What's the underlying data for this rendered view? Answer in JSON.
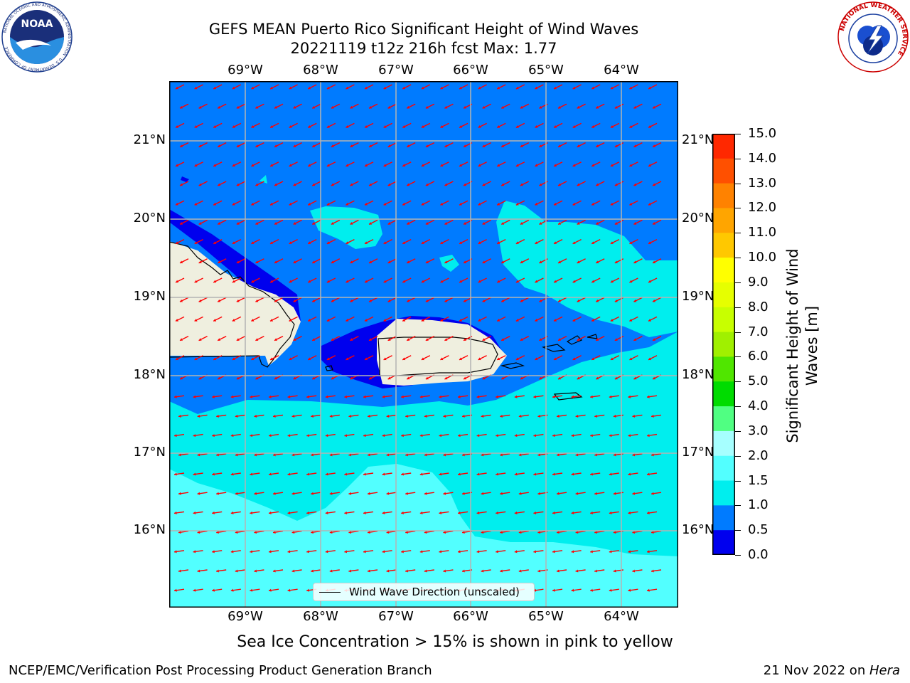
{
  "title": {
    "line1": "GEFS MEAN Puerto Rico Significant Height of Wind Waves",
    "line2": "20221119 t12z 216h fcst   Max: 1.77"
  },
  "logos": {
    "left_text": "NOAA",
    "left_ring": "NATIONAL OCEANIC AND ATMOSPHERIC ADMINISTRATION · U.S. DEPARTMENT OF COMMERCE",
    "right_ring": "NATIONAL WEATHER SERVICE"
  },
  "map": {
    "lon_labels": [
      "69°W",
      "68°W",
      "67°W",
      "66°W",
      "65°W",
      "64°W"
    ],
    "lat_labels": [
      "21°N",
      "20°N",
      "19°N",
      "18°N",
      "17°N",
      "16°N"
    ],
    "legend_label": "Wind Wave Direction (unscaled)",
    "colors": {
      "land": "#efefdf",
      "band_0_0_5": "#0000ee",
      "band_0_5_1": "#007bff",
      "band_1_1_5": "#00eeee",
      "band_1_5_2": "#52ffff",
      "band_2_3": "#a6ffff",
      "arrow": "#ff0000",
      "grid": "#b4b4b4"
    }
  },
  "colorbar": {
    "label": "Significant Height of Wind Waves [m]",
    "ticks": [
      "15.0",
      "14.0",
      "13.0",
      "12.0",
      "11.0",
      "10.0",
      "9.0",
      "8.0",
      "7.0",
      "6.0",
      "5.0",
      "4.0",
      "3.0",
      "2.0",
      "1.5",
      "1.0",
      "0.5",
      "0.0"
    ],
    "colors": [
      "#ff0000",
      "#ff2800",
      "#ff5000",
      "#ff8200",
      "#ffa500",
      "#ffc800",
      "#ffff00",
      "#e6ff00",
      "#c8ff00",
      "#a0f000",
      "#50e600",
      "#00dc00",
      "#50ff82",
      "#a6ffff",
      "#52ffff",
      "#00eeee",
      "#007bff",
      "#0000ee"
    ]
  },
  "note": "Sea Ice Concentration > 15% is shown in pink to yellow",
  "footer": {
    "left": "NCEP/EMC/Verification Post Processing Product Generation Branch",
    "right_prefix": "21 Nov 2022 on ",
    "right_host": "Hera"
  }
}
